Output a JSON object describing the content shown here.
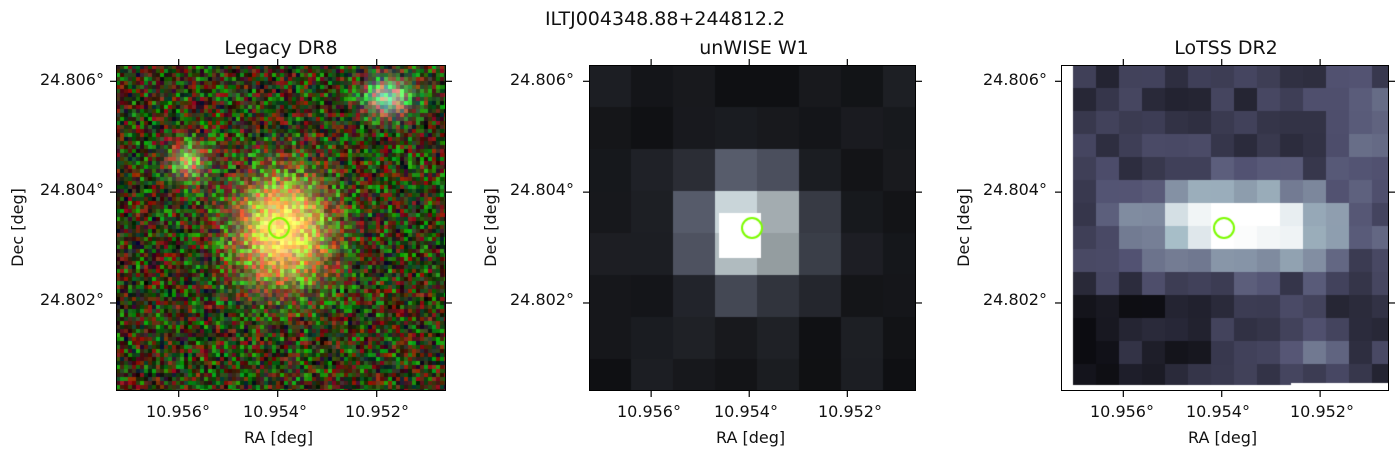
{
  "figure": {
    "suptitle": "ILTJ004348.88+244812.2",
    "marker_color": "#7CFC00"
  },
  "panels": [
    {
      "title": "Legacy DR8",
      "xlabel": "RA [deg]",
      "ylabel": "Dec [deg]",
      "xticks": [
        "10.956°",
        "10.954°",
        "10.952°"
      ],
      "yticks": [
        "24.806°",
        "24.804°",
        "24.802°"
      ],
      "kind": "optical-rgb"
    },
    {
      "title": "unWISE W1",
      "xlabel": "RA [deg]",
      "ylabel": "Dec [deg]",
      "xticks": [
        "10.956°",
        "10.954°",
        "10.952°"
      ],
      "yticks": [
        "24.806°",
        "24.804°",
        "24.802°"
      ],
      "kind": "infrared-gray"
    },
    {
      "title": "LoTSS DR2",
      "xlabel": "RA [deg]",
      "ylabel": "Dec [deg]",
      "xticks": [
        "10.956°",
        "10.954°",
        "10.952°"
      ],
      "yticks": [
        "24.806°",
        "24.804°",
        "24.802°"
      ],
      "kind": "radio-bone"
    }
  ]
}
